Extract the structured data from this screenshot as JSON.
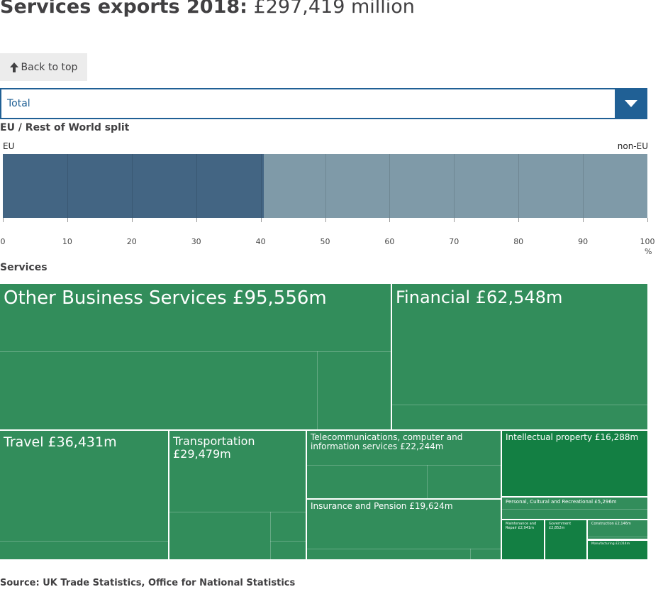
{
  "header": {
    "title_bold": "Services exports 2018:",
    "title_value": "£297,419 million"
  },
  "back_to_top": {
    "label": "Back to top",
    "icon": "arrow-up-icon"
  },
  "dropdown": {
    "selected": "Total",
    "icon": "caret-down-icon"
  },
  "colors": {
    "eu": "#436583",
    "non_eu": "#7f9aa8",
    "treemap": "#328d5b",
    "treemap_dark": "#137f43",
    "accent": "#206095"
  },
  "chart_data": [
    {
      "type": "bar",
      "title": "EU / Rest of World split",
      "orientation": "horizontal-stacked",
      "series": [
        {
          "name": "EU",
          "values": [
            40.5
          ]
        },
        {
          "name": "non-EU",
          "values": [
            59.5
          ]
        }
      ],
      "xlim": [
        0,
        100
      ],
      "xticks": [
        "0",
        "10",
        "20",
        "30",
        "40",
        "50",
        "60",
        "70",
        "80",
        "90",
        "100"
      ],
      "xunit": "%",
      "grid": true
    },
    {
      "type": "treemap",
      "title": "Services",
      "items": [
        {
          "label": "Other Business Services £95,556m",
          "name": "Other Business Services",
          "value": 95556
        },
        {
          "label": "Financial £62,548m",
          "name": "Financial",
          "value": 62548
        },
        {
          "label": "Travel £36,431m",
          "name": "Travel",
          "value": 36431
        },
        {
          "label": "Transportation £29,479m",
          "name": "Transportation",
          "value": 29479
        },
        {
          "label": "Telecommunications, computer and information services £22,244m",
          "name": "Telecommunications, computer and information services",
          "value": 22244
        },
        {
          "label": "Insurance and Pension £19,624m",
          "name": "Insurance and Pension",
          "value": 19624
        },
        {
          "label": "Intellectual property £16,288m",
          "name": "Intellectual property",
          "value": 16288
        },
        {
          "label": "Personal, Cultural and Recreational £5,296m",
          "name": "Personal, Cultural and Recreational",
          "value": 5296
        },
        {
          "label": "Maintenance and Repair £2,941m",
          "name": "Maintenance and Repair",
          "value": 2941
        },
        {
          "label": "Government £2,852m",
          "name": "Government",
          "value": 2852
        },
        {
          "label": "Construction £2,146m",
          "name": "Construction",
          "value": 2146
        },
        {
          "label": "Manufacturing £2,014m",
          "name": "Manufacturing",
          "value": 2014
        }
      ]
    }
  ],
  "footer": {
    "source": "Source: UK Trade Statistics, Office for National Statistics"
  }
}
